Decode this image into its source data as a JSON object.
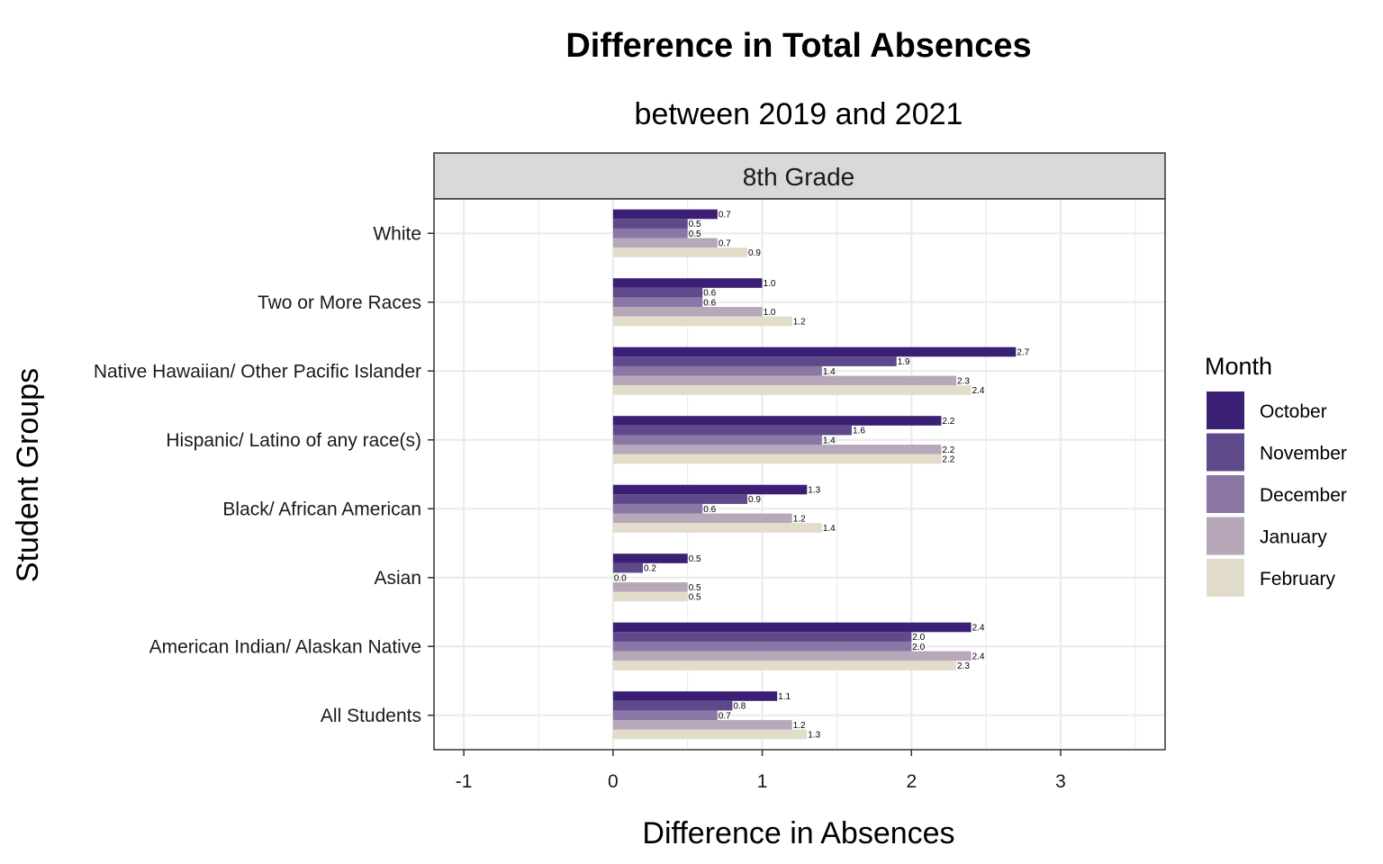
{
  "chart_data": {
    "type": "bar",
    "orientation": "horizontal",
    "title": "Difference in Total Absences",
    "subtitle": "between 2019 and 2021",
    "facet": "8th Grade",
    "xlabel": "Difference in Absences",
    "ylabel": "Student Groups",
    "xlim": [
      -1.2,
      3.7
    ],
    "x_ticks": [
      -1,
      0,
      1,
      2,
      3
    ],
    "x_tick_labels": [
      "-1",
      "0",
      "1",
      "2",
      "3"
    ],
    "grid": true,
    "legend_title": "Month",
    "legend_position": "right",
    "categories": [
      "White",
      "Two or More Races",
      "Native Hawaiian/ Other Pacific Islander",
      "Hispanic/ Latino of any race(s)",
      "Black/ African American",
      "Asian",
      "American Indian/ Alaskan Native",
      "All Students"
    ],
    "series": [
      {
        "name": "October",
        "color": "#3b1f75",
        "values": [
          0.7,
          1.0,
          2.7,
          2.2,
          1.3,
          0.5,
          2.4,
          1.1
        ],
        "labels": [
          "0.7",
          "1.0",
          "2.7",
          "2.2",
          "1.3",
          "0.5",
          "2.4",
          "1.1"
        ]
      },
      {
        "name": "November",
        "color": "#5e4a8a",
        "values": [
          0.5,
          0.6,
          1.9,
          1.6,
          0.9,
          0.2,
          2.0,
          0.8
        ],
        "labels": [
          "0.5",
          "0.6",
          "1.9",
          "1.6",
          "0.9",
          "0.2",
          "2.0",
          "0.8"
        ]
      },
      {
        "name": "December",
        "color": "#8a77a6",
        "values": [
          0.5,
          0.6,
          1.4,
          1.4,
          0.6,
          0.0,
          2.0,
          0.7
        ],
        "labels": [
          "0.5",
          "0.6",
          "1.4",
          "1.4",
          "0.6",
          "0.0",
          "2.0",
          "0.7"
        ]
      },
      {
        "name": "January",
        "color": "#b6a8b8",
        "values": [
          0.7,
          1.0,
          2.3,
          2.2,
          1.2,
          0.5,
          2.4,
          1.2
        ],
        "labels": [
          "0.7",
          "1.0",
          "2.3",
          "2.2",
          "1.2",
          "0.5",
          "2.4",
          "1.2"
        ]
      },
      {
        "name": "February",
        "color": "#e2dcca",
        "values": [
          0.9,
          1.2,
          2.4,
          2.2,
          1.4,
          0.5,
          2.3,
          1.3
        ],
        "labels": [
          "0.9",
          "1.2",
          "2.4",
          "2.2",
          "1.4",
          "0.5",
          "2.3",
          "1.3"
        ]
      }
    ]
  }
}
